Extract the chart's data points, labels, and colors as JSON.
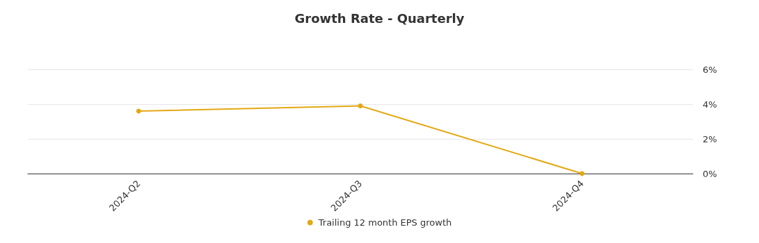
{
  "chart_data": {
    "type": "line",
    "title": "Growth Rate - Quarterly",
    "categories": [
      "2024-Q2",
      "2024-Q3",
      "2024-Q4"
    ],
    "series": [
      {
        "name": "Trailing 12 month EPS growth",
        "color": "#e3a812",
        "values": [
          3.6,
          3.9,
          0
        ]
      }
    ],
    "ylim": [
      0,
      6
    ],
    "yticks": [
      {
        "value": 0,
        "label": "0%"
      },
      {
        "value": 2,
        "label": "2%"
      },
      {
        "value": 4,
        "label": "4%"
      },
      {
        "value": 6,
        "label": "6%"
      }
    ],
    "grid": "y",
    "legend": "bottom",
    "marker": "circle",
    "line_style": "solid"
  }
}
